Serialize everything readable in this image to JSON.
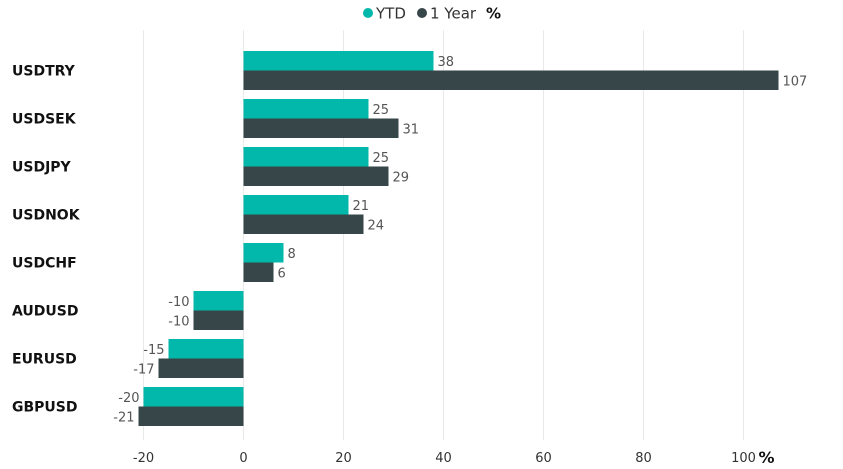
{
  "chart_data": {
    "type": "bar",
    "orientation": "horizontal",
    "categories": [
      "USDTRY",
      "USDSEK",
      "USDJPY",
      "USDNOK",
      "USDCHF",
      "AUDUSD",
      "EURUSD",
      "GBPUSD"
    ],
    "series": [
      {
        "name": "YTD",
        "color": "#01b8aa",
        "values": [
          38,
          25,
          25,
          21,
          8,
          -10,
          -15,
          -20
        ]
      },
      {
        "name": "1 Year",
        "color": "#374649",
        "values": [
          107,
          31,
          29,
          24,
          6,
          -10,
          -17,
          -21
        ]
      }
    ],
    "legend_unit": "%",
    "x_unit": "%",
    "x_ticks": [
      -20,
      0,
      20,
      40,
      60,
      80,
      100
    ],
    "xlim": [
      -20,
      107
    ],
    "grid": true,
    "legend_position": "top-center"
  }
}
